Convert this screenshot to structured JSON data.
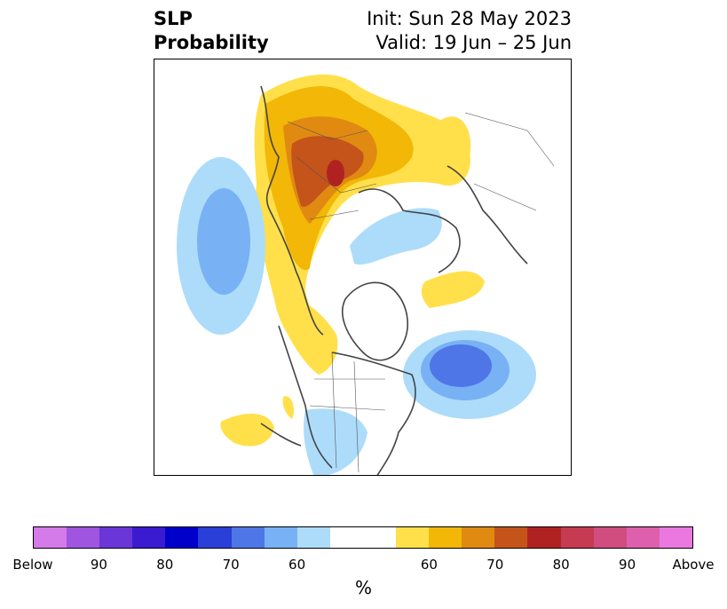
{
  "title": {
    "left_line1": "SLP",
    "left_line2": "Probability",
    "right_line1": "Init: Sun 28 May 2023",
    "right_line2": "Valid: 19 Jun – 25 Jun"
  },
  "colorbar": {
    "colors": [
      "#d57ae9",
      "#9f55e0",
      "#6a36d8",
      "#3a1bd0",
      "#0000cb",
      "#2a3ed8",
      "#4f76e6",
      "#78b2f4",
      "#addcfa",
      "#ffffff",
      "#ffffff",
      "#ffe04a",
      "#f2b707",
      "#e08a12",
      "#c4541a",
      "#b02222",
      "#c63a52",
      "#d04d80",
      "#de60ac",
      "#ea78e0"
    ],
    "ticks": [
      "Below",
      "90",
      "80",
      "70",
      "60",
      "60",
      "70",
      "80",
      "90",
      "Above"
    ],
    "unit_label": "%"
  },
  "map": {
    "projection": "north-polar-stereographic",
    "field": "Sea level pressure tercile probability",
    "anomaly_regions": [
      {
        "region": "Eurasia (Europe / western Russia)",
        "category": "above",
        "max_prob": 80
      },
      {
        "region": "Central Siberia",
        "category": "above",
        "max_prob": 60
      },
      {
        "region": "North Atlantic (south of Greenland)",
        "category": "below",
        "max_prob": 80
      },
      {
        "region": "North Pacific (central)",
        "category": "below",
        "max_prob": 70
      },
      {
        "region": "Arctic Ocean north of Alaska",
        "category": "below",
        "max_prob": 60
      },
      {
        "region": "Western Canada",
        "category": "above",
        "max_prob": 65
      },
      {
        "region": "Southern United States",
        "category": "below",
        "max_prob": 60
      },
      {
        "region": "Eastern North Pacific off Baja",
        "category": "above",
        "max_prob": 60
      }
    ]
  }
}
